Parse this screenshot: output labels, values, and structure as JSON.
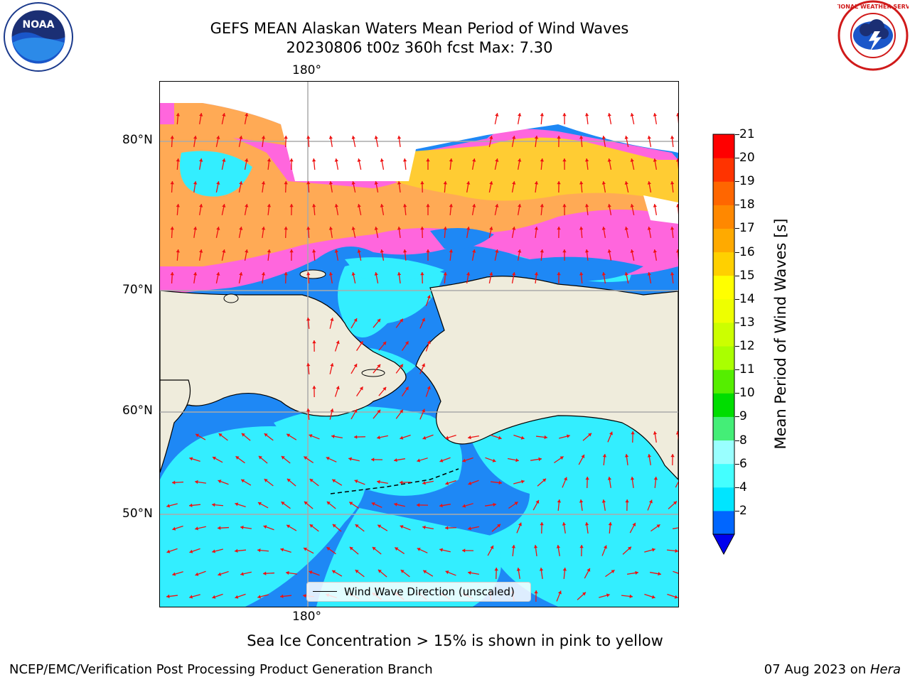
{
  "title": {
    "line1": "GEFS MEAN Alaskan Waters Mean Period of Wind Waves",
    "line2": "20230806 t00z 360h fcst   Max: 7.30"
  },
  "logos": {
    "left": "noaa-logo",
    "left_text": "NOAA",
    "right": "national-weather-service-logo",
    "right_text": "NATIONAL WEATHER SERVICE"
  },
  "map": {
    "longitude_label_top": "180°",
    "longitude_label_bottom": "180°",
    "latitude_labels": [
      "80°N",
      "70°N",
      "60°N",
      "50°N"
    ],
    "colors": {
      "land": "#efecdc",
      "ocean_low": "#1e88f5",
      "ocean_mid": "#33eeff",
      "ice_pink": "#ff66dd",
      "ice_orange": "#ffaa55",
      "ice_yellow": "#ffcc33",
      "arrow": "#ee1111"
    }
  },
  "legend": {
    "label": "Wind Wave Direction (unscaled)"
  },
  "colorbar": {
    "label": "Mean Period of Wind Waves [s]",
    "ticks": [
      "21",
      "20",
      "19",
      "18",
      "17",
      "16",
      "15",
      "14",
      "13",
      "12",
      "11",
      "10",
      "9",
      "8",
      "6",
      "4",
      "2"
    ],
    "colors": [
      "#0000ee",
      "#0066ff",
      "#00e5ff",
      "#44ffff",
      "#99ffff",
      "#44ee77",
      "#00dd00",
      "#55ee00",
      "#aaff00",
      "#ccff00",
      "#eeff00",
      "#ffff00",
      "#ffd000",
      "#ffaa00",
      "#ff8800",
      "#ff6600",
      "#ff3300",
      "#ff0000"
    ]
  },
  "caption": "Sea Ice Concentration > 15% is shown in pink to yellow",
  "footer": {
    "left": "NCEP/EMC/Verification Post Processing Product Generation Branch",
    "right_prefix": "07 Aug 2023 on ",
    "right_host": "Hera"
  }
}
